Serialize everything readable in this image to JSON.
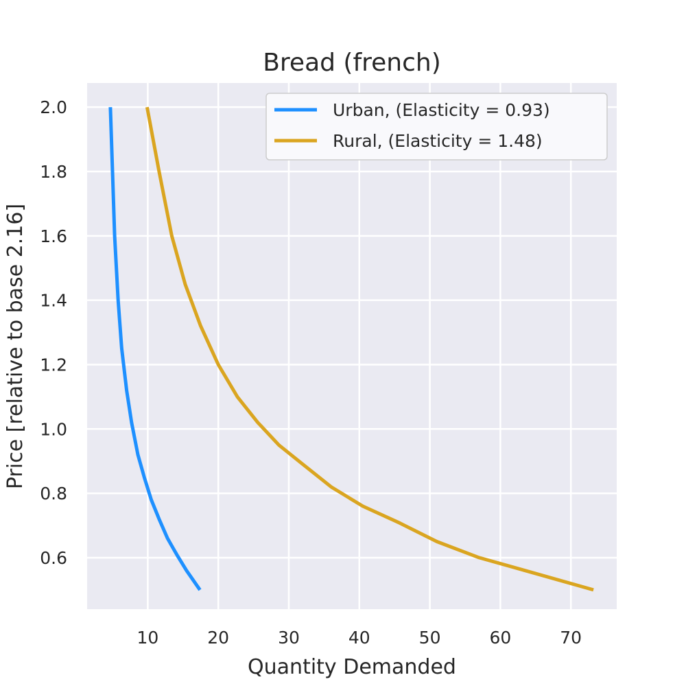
{
  "chart_data": {
    "type": "line",
    "title": "Bread (french)",
    "xlabel": "Quantity Demanded",
    "ylabel": "Price [relative to base 2.16]",
    "xlim": [
      1.4,
      76.5
    ],
    "ylim": [
      0.44,
      2.075
    ],
    "xticks": [
      10,
      20,
      30,
      40,
      50,
      60,
      70
    ],
    "yticks": [
      0.6,
      0.8,
      1.0,
      1.2,
      1.4,
      1.6,
      1.8,
      2.0
    ],
    "xtick_labels": [
      "10",
      "20",
      "30",
      "40",
      "50",
      "60",
      "70"
    ],
    "ytick_labels": [
      "0.6",
      "0.8",
      "1.0",
      "1.2",
      "1.4",
      "1.6",
      "1.8",
      "2.0"
    ],
    "grid": true,
    "legend_position": "top-right",
    "background_color": "#EAEAF2",
    "series": [
      {
        "name": "Urban, (Elasticity = 0.93)",
        "color": "#1E90FF",
        "x": [
          4.7,
          5.0,
          5.3,
          5.8,
          6.3,
          7.0,
          7.7,
          8.6,
          9.5,
          10.5,
          11.6,
          12.8,
          14.1,
          15.5,
          17.4
        ],
        "y": [
          2.0,
          1.8,
          1.6,
          1.4,
          1.25,
          1.12,
          1.02,
          0.92,
          0.85,
          0.78,
          0.72,
          0.66,
          0.61,
          0.56,
          0.5
        ]
      },
      {
        "name": "Rural, (Elasticity = 1.48)",
        "color": "#DAA520",
        "x": [
          9.9,
          11.6,
          13.4,
          15.3,
          17.5,
          20.0,
          22.7,
          25.6,
          28.6,
          32.0,
          36.0,
          40.5,
          45.5,
          51.0,
          57.0,
          63.5,
          73.2
        ],
        "y": [
          2.0,
          1.8,
          1.6,
          1.45,
          1.32,
          1.2,
          1.1,
          1.02,
          0.95,
          0.89,
          0.82,
          0.76,
          0.71,
          0.65,
          0.6,
          0.56,
          0.5
        ]
      }
    ]
  }
}
